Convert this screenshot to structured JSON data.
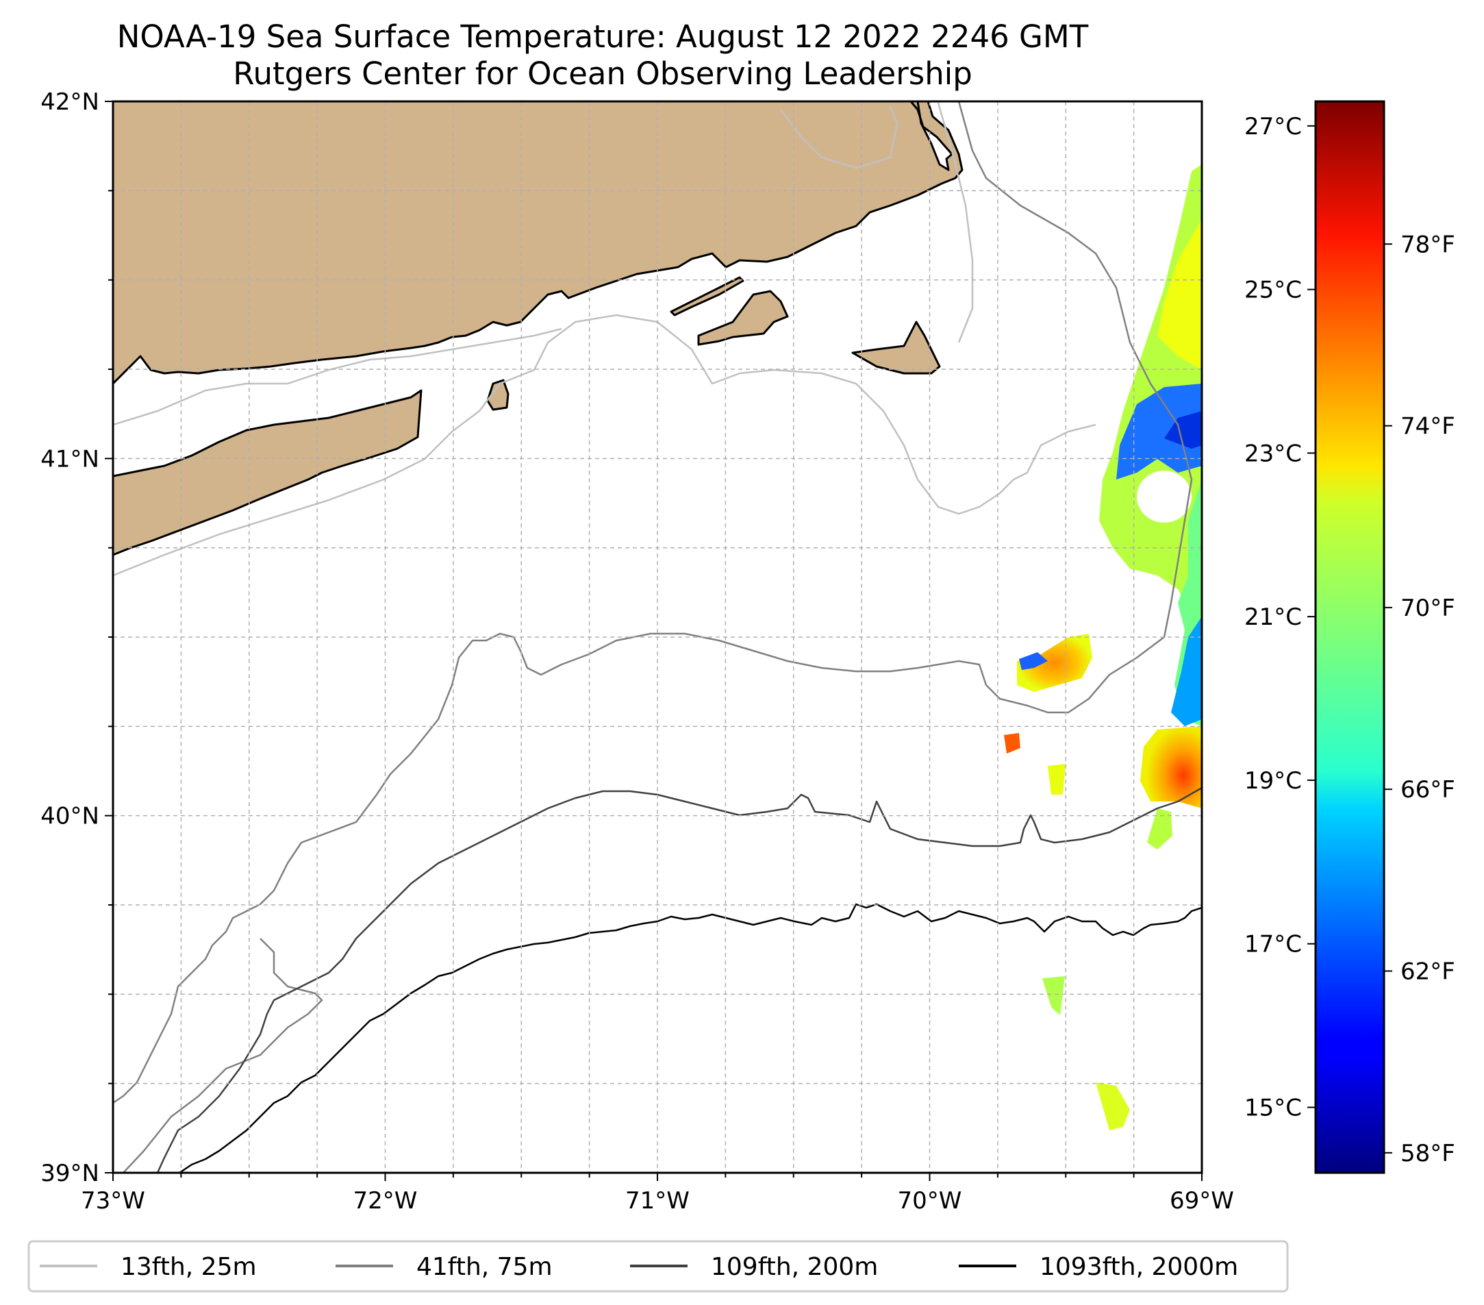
{
  "title": {
    "line1": "NOAA-19 Sea Surface Temperature: August 12 2022 2246 GMT",
    "line2": "Rutgers Center for Ocean Observing Leadership"
  },
  "colors": {
    "land": "#d2b48c",
    "coast": "#000000",
    "grid": "#b0b0b0",
    "contour_25m": "#c0c0c0",
    "contour_75m": "#808080",
    "contour_200m": "#404040",
    "contour_2000m": "#000000"
  },
  "map": {
    "lon_range": [
      -73,
      -69
    ],
    "lat_range": [
      39,
      42
    ],
    "lon_ticks": [
      -73,
      -72,
      -71,
      -70,
      -69
    ],
    "lon_labels": [
      "73°W",
      "72°W",
      "71°W",
      "70°W",
      "69°W"
    ],
    "lat_ticks": [
      39,
      40,
      41,
      42
    ],
    "lat_labels": [
      "39°N",
      "40°N",
      "41°N",
      "42°N"
    ]
  },
  "colorbar": {
    "colormap": "jet",
    "range_c": [
      14.2,
      27.3
    ],
    "celsius_ticks": [
      15,
      17,
      19,
      21,
      23,
      25,
      27
    ],
    "celsius_labels": [
      "15°C",
      "17°C",
      "19°C",
      "21°C",
      "23°C",
      "25°C",
      "27°C"
    ],
    "fahrenheit_ticks": [
      58,
      62,
      66,
      70,
      74,
      78
    ],
    "fahrenheit_labels": [
      "58°F",
      "62°F",
      "66°F",
      "70°F",
      "74°F",
      "78°F"
    ]
  },
  "legend": {
    "items": [
      {
        "label": "13fth, 25m",
        "color": "#c0c0c0"
      },
      {
        "label": "41fth, 75m",
        "color": "#808080"
      },
      {
        "label": "109fth, 200m",
        "color": "#404040"
      },
      {
        "label": "1093fth, 2000m",
        "color": "#000000"
      }
    ]
  },
  "sst_patches_c": [
    {
      "region": "eastern-edge-north",
      "temp_c": 21.5
    },
    {
      "region": "eastern-edge-cold-core",
      "temp_c": 16.8
    },
    {
      "region": "eastern-edge-south",
      "temp_c": 20.5
    },
    {
      "region": "shelf-break-warm-patch",
      "temp_c": 24.0
    },
    {
      "region": "southeast-warm-patch",
      "temp_c": 25.5
    },
    {
      "region": "offshore-small-patch",
      "temp_c": 21.0
    }
  ]
}
